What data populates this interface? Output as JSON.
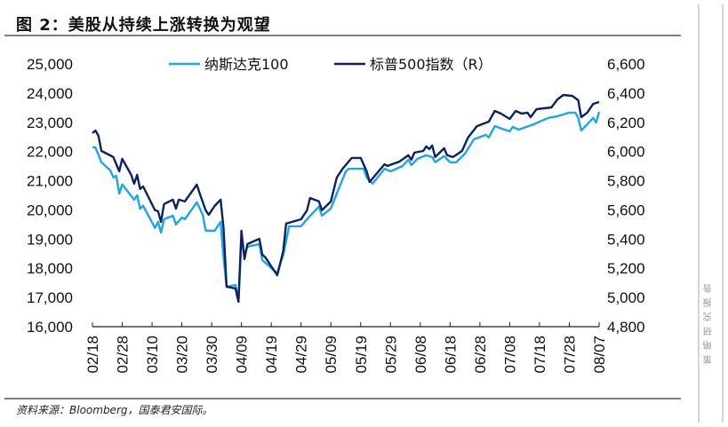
{
  "title": "图 2：美股从持续上涨转换为观望",
  "source": "资料来源：Bloomberg，国泰君安国际。",
  "side_label": "策略研究报告",
  "chart_data": {
    "type": "line",
    "title": "图 2：美股从持续上涨转换为观望",
    "xlabel": "",
    "ylabel": "",
    "x_ticks": [
      "02/18",
      "02/28",
      "03/10",
      "03/20",
      "03/30",
      "04/09",
      "04/19",
      "04/29",
      "05/09",
      "05/19",
      "05/29",
      "06/08",
      "06/18",
      "06/28",
      "07/08",
      "07/18",
      "07/28",
      "08/07"
    ],
    "y_left": {
      "lim": [
        16000,
        25000
      ],
      "ticks": [
        "16,000",
        "17,000",
        "18,000",
        "19,000",
        "20,000",
        "21,000",
        "22,000",
        "23,000",
        "24,000",
        "25,000"
      ]
    },
    "y_right": {
      "lim": [
        4800,
        6600
      ],
      "ticks": [
        "4,800",
        "5,000",
        "5,200",
        "5,400",
        "5,600",
        "5,800",
        "6,000",
        "6,200",
        "6,400",
        "6,600"
      ]
    },
    "grid": false,
    "legend_position": "top",
    "series": [
      {
        "name": "纳斯达克100",
        "axis": "left",
        "color": "#1aa7e8",
        "points": [
          [
            "02/18",
            22140
          ],
          [
            "02/19",
            22140
          ],
          [
            "02/21",
            21630
          ],
          [
            "02/24",
            21350
          ],
          [
            "02/25",
            21110
          ],
          [
            "02/26",
            21170
          ],
          [
            "02/27",
            20560
          ],
          [
            "02/28",
            20870
          ],
          [
            "03/04",
            20350
          ],
          [
            "03/05",
            20500
          ],
          [
            "03/06",
            20040
          ],
          [
            "03/07",
            20140
          ],
          [
            "03/11",
            19380
          ],
          [
            "03/12",
            19590
          ],
          [
            "03/13",
            19220
          ],
          [
            "03/14",
            19680
          ],
          [
            "03/17",
            19800
          ],
          [
            "03/18",
            19500
          ],
          [
            "03/20",
            19740
          ],
          [
            "03/21",
            19680
          ],
          [
            "03/25",
            20260
          ],
          [
            "03/27",
            19830
          ],
          [
            "03/28",
            19290
          ],
          [
            "03/31",
            19290
          ],
          [
            "04/02",
            19590
          ],
          [
            "04/03",
            18370
          ],
          [
            "04/04",
            17370
          ],
          [
            "04/07",
            17430
          ],
          [
            "04/08",
            16940
          ],
          [
            "04/09",
            18980
          ],
          [
            "04/10",
            18460
          ],
          [
            "04/11",
            18740
          ],
          [
            "04/15",
            18830
          ],
          [
            "04/16",
            18280
          ],
          [
            "04/21",
            17830
          ],
          [
            "04/23",
            18460
          ],
          [
            "04/25",
            19440
          ],
          [
            "04/29",
            19440
          ],
          [
            "05/02",
            19800
          ],
          [
            "05/05",
            20110
          ],
          [
            "05/06",
            19800
          ],
          [
            "05/09",
            20050
          ],
          [
            "05/11",
            20560
          ],
          [
            "05/14",
            21320
          ],
          [
            "05/15",
            21410
          ],
          [
            "05/20",
            21410
          ],
          [
            "05/21",
            21110
          ],
          [
            "05/23",
            20900
          ],
          [
            "05/27",
            21410
          ],
          [
            "05/29",
            21320
          ],
          [
            "06/02",
            21500
          ],
          [
            "06/04",
            21720
          ],
          [
            "06/05",
            21530
          ],
          [
            "06/07",
            21750
          ],
          [
            "06/10",
            21870
          ],
          [
            "06/12",
            21810
          ],
          [
            "06/13",
            21630
          ],
          [
            "06/16",
            21840
          ],
          [
            "06/18",
            21630
          ],
          [
            "06/20",
            21630
          ],
          [
            "06/23",
            21930
          ],
          [
            "06/26",
            22420
          ],
          [
            "06/30",
            22570
          ],
          [
            "07/01",
            22480
          ],
          [
            "07/03",
            22870
          ],
          [
            "07/08",
            22690
          ],
          [
            "07/09",
            22840
          ],
          [
            "07/11",
            22750
          ],
          [
            "07/16",
            22930
          ],
          [
            "07/18",
            23020
          ],
          [
            "07/21",
            23150
          ],
          [
            "07/24",
            23210
          ],
          [
            "07/28",
            23330
          ],
          [
            "07/30",
            23330
          ],
          [
            "07/31",
            23150
          ],
          [
            "08/01",
            22720
          ],
          [
            "08/03",
            22930
          ],
          [
            "08/05",
            23150
          ],
          [
            "08/06",
            22990
          ],
          [
            "08/07",
            23360
          ]
        ]
      },
      {
        "name": "标普500指数（R）",
        "axis": "right",
        "color": "#0c2165",
        "points": [
          [
            "02/18",
            6126
          ],
          [
            "02/19",
            6144
          ],
          [
            "02/20",
            6108
          ],
          [
            "02/21",
            6004
          ],
          [
            "02/25",
            5962
          ],
          [
            "02/27",
            5864
          ],
          [
            "02/28",
            5950
          ],
          [
            "03/03",
            5840
          ],
          [
            "03/04",
            5779
          ],
          [
            "03/05",
            5840
          ],
          [
            "03/06",
            5743
          ],
          [
            "03/07",
            5761
          ],
          [
            "03/11",
            5597
          ],
          [
            "03/12",
            5591
          ],
          [
            "03/13",
            5518
          ],
          [
            "03/14",
            5640
          ],
          [
            "03/17",
            5670
          ],
          [
            "03/18",
            5609
          ],
          [
            "03/19",
            5670
          ],
          [
            "03/21",
            5658
          ],
          [
            "03/25",
            5773
          ],
          [
            "03/26",
            5712
          ],
          [
            "03/28",
            5597
          ],
          [
            "03/29",
            5567
          ],
          [
            "03/31",
            5627
          ],
          [
            "04/02",
            5670
          ],
          [
            "04/03",
            5475
          ],
          [
            "04/04",
            5074
          ],
          [
            "04/07",
            5062
          ],
          [
            "04/08",
            4971
          ],
          [
            "04/09",
            5457
          ],
          [
            "04/10",
            5263
          ],
          [
            "04/11",
            5366
          ],
          [
            "04/15",
            5402
          ],
          [
            "04/16",
            5293
          ],
          [
            "04/17",
            5275
          ],
          [
            "04/21",
            5153
          ],
          [
            "04/23",
            5317
          ],
          [
            "04/24",
            5506
          ],
          [
            "04/29",
            5536
          ],
          [
            "05/01",
            5597
          ],
          [
            "05/02",
            5682
          ],
          [
            "05/05",
            5658
          ],
          [
            "05/06",
            5597
          ],
          [
            "05/09",
            5658
          ],
          [
            "05/11",
            5822
          ],
          [
            "05/13",
            5883
          ],
          [
            "05/16",
            5956
          ],
          [
            "05/19",
            5956
          ],
          [
            "05/21",
            5864
          ],
          [
            "05/22",
            5791
          ],
          [
            "05/27",
            5913
          ],
          [
            "05/28",
            5901
          ],
          [
            "06/01",
            5931
          ],
          [
            "06/04",
            5974
          ],
          [
            "06/05",
            5943
          ],
          [
            "06/06",
            5992
          ],
          [
            "06/09",
            6004
          ],
          [
            "06/10",
            6035
          ],
          [
            "06/11",
            6016
          ],
          [
            "06/12",
            6041
          ],
          [
            "06/13",
            5962
          ],
          [
            "06/16",
            6022
          ],
          [
            "06/17",
            5974
          ],
          [
            "06/19",
            5962
          ],
          [
            "06/22",
            6004
          ],
          [
            "06/24",
            6095
          ],
          [
            "06/27",
            6174
          ],
          [
            "07/01",
            6205
          ],
          [
            "07/03",
            6278
          ],
          [
            "07/05",
            6260
          ],
          [
            "07/08",
            6223
          ],
          [
            "07/10",
            6278
          ],
          [
            "07/12",
            6260
          ],
          [
            "07/14",
            6266
          ],
          [
            "07/15",
            6235
          ],
          [
            "07/17",
            6290
          ],
          [
            "07/22",
            6302
          ],
          [
            "07/24",
            6357
          ],
          [
            "07/26",
            6387
          ],
          [
            "07/29",
            6381
          ],
          [
            "07/31",
            6351
          ],
          [
            "08/01",
            6235
          ],
          [
            "08/03",
            6266
          ],
          [
            "08/05",
            6326
          ],
          [
            "08/07",
            6339
          ]
        ]
      }
    ]
  }
}
